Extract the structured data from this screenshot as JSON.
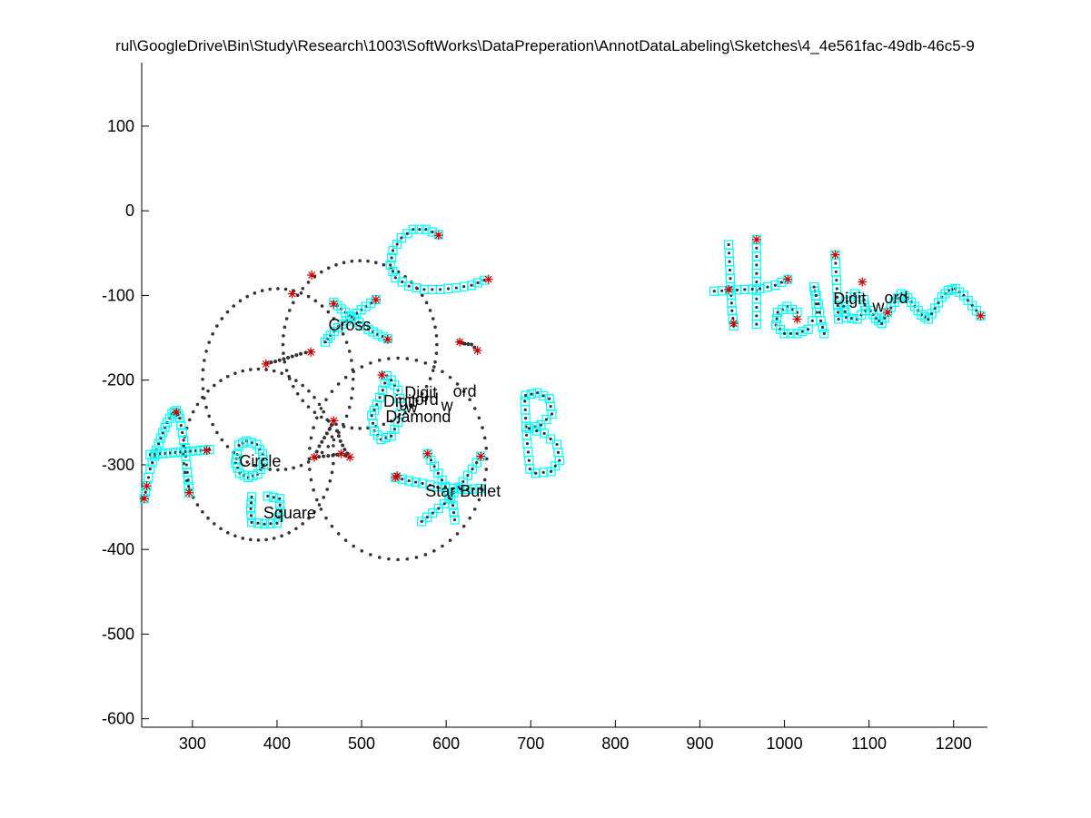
{
  "figure": {
    "title": "rul\\GoogleDrive\\Bin\\Study\\Research\\1003\\SoftWorks\\DataPreperation\\AnnotDataLabeling\\Sketches\\4_4e561fac-49db-46c5-9"
  },
  "chart_data": {
    "type": "scatter",
    "title": "rul\\GoogleDrive\\Bin\\Study\\Research\\1003\\SoftWorks\\DataPreperation\\AnnotDataLabeling\\Sketches\\4_4e561fac-49db-46c5-9",
    "xlabel": "",
    "ylabel": "",
    "xlim": [
      240,
      1240
    ],
    "ylim": [
      -610,
      175
    ],
    "xticks": [
      300,
      400,
      500,
      600,
      700,
      800,
      900,
      1000,
      1100,
      1200
    ],
    "yticks": [
      100,
      0,
      -100,
      -200,
      -300,
      -400,
      -500,
      -600
    ],
    "grid": false,
    "colors": {
      "stroke_marker": "#00ffff",
      "point": "#333333",
      "corner": "#cc0000",
      "axis": "#000000"
    },
    "annotations": [
      {
        "text": "Cross",
        "x": 486,
        "y": -135
      },
      {
        "text": "Digit",
        "x": 570,
        "y": -215
      },
      {
        "text": "ord",
        "x": 622,
        "y": -213
      },
      {
        "text": "Digit",
        "x": 545,
        "y": -225
      },
      {
        "text": "ord",
        "x": 577,
        "y": -223
      },
      {
        "text": "w",
        "x": 601,
        "y": -230
      },
      {
        "text": "w",
        "x": 559,
        "y": -232
      },
      {
        "text": "Diamond",
        "x": 567,
        "y": -243
      },
      {
        "text": "Circle",
        "x": 380,
        "y": -296
      },
      {
        "text": "Star Bullet",
        "x": 620,
        "y": -331
      },
      {
        "text": "Square",
        "x": 415,
        "y": -357
      },
      {
        "text": "Digit",
        "x": 1077,
        "y": -104
      },
      {
        "text": "ord",
        "x": 1132,
        "y": -103
      },
      {
        "text": "w",
        "x": 1111,
        "y": -113
      }
    ],
    "series": [
      {
        "name": "",
        "kind": "cyan",
        "points": [
          [
            243,
            -340
          ],
          [
            246,
            -325
          ],
          [
            250,
            -305
          ],
          [
            255,
            -290
          ],
          [
            260,
            -275
          ],
          [
            265,
            -262
          ],
          [
            270,
            -250
          ],
          [
            276,
            -240
          ],
          [
            281,
            -236
          ],
          [
            285,
            -245
          ],
          [
            288,
            -262
          ],
          [
            291,
            -280
          ],
          [
            293,
            -300
          ],
          [
            295,
            -318
          ],
          [
            296,
            -333
          ]
        ]
      },
      {
        "name": "",
        "kind": "cyan",
        "points": [
          [
            250,
            -288
          ],
          [
            262,
            -287
          ],
          [
            274,
            -286
          ],
          [
            286,
            -285
          ],
          [
            298,
            -284
          ],
          [
            310,
            -283
          ],
          [
            320,
            -282
          ]
        ]
      },
      {
        "name": "",
        "kind": "cyan",
        "points": [
          [
            353,
            -288
          ],
          [
            351,
            -298
          ],
          [
            356,
            -310
          ],
          [
            366,
            -315
          ],
          [
            377,
            -311
          ],
          [
            384,
            -300
          ],
          [
            383,
            -287
          ],
          [
            376,
            -276
          ],
          [
            364,
            -272
          ],
          [
            355,
            -277
          ]
        ]
      },
      {
        "name": "",
        "kind": "cyan",
        "points": [
          [
            370,
            -338
          ],
          [
            369,
            -352
          ],
          [
            370,
            -368
          ],
          [
            385,
            -370
          ],
          [
            400,
            -369
          ],
          [
            404,
            -355
          ],
          [
            403,
            -340
          ],
          [
            389,
            -337
          ]
        ]
      },
      {
        "name": "",
        "kind": "cyan",
        "points": [
          [
            467,
            -108
          ],
          [
            476,
            -116
          ],
          [
            486,
            -124
          ],
          [
            497,
            -132
          ],
          [
            508,
            -140
          ],
          [
            519,
            -146
          ],
          [
            531,
            -151
          ]
        ]
      },
      {
        "name": "",
        "kind": "cyan",
        "points": [
          [
            517,
            -105
          ],
          [
            505,
            -113
          ],
          [
            494,
            -121
          ],
          [
            482,
            -130
          ],
          [
            472,
            -138
          ],
          [
            463,
            -147
          ],
          [
            457,
            -155
          ]
        ]
      },
      {
        "name": "",
        "kind": "cyan",
        "points": [
          [
            591,
            -28
          ],
          [
            576,
            -22
          ],
          [
            561,
            -22
          ],
          [
            547,
            -32
          ],
          [
            537,
            -47
          ],
          [
            534,
            -64
          ],
          [
            540,
            -79
          ],
          [
            556,
            -89
          ],
          [
            574,
            -93
          ],
          [
            593,
            -93
          ],
          [
            612,
            -91
          ],
          [
            630,
            -88
          ],
          [
            645,
            -82
          ]
        ]
      },
      {
        "name": "",
        "kind": "cyan",
        "points": [
          [
            530,
            -195
          ],
          [
            525,
            -212
          ],
          [
            518,
            -229
          ],
          [
            512,
            -242
          ],
          [
            515,
            -260
          ],
          [
            523,
            -270
          ],
          [
            535,
            -266
          ],
          [
            543,
            -250
          ],
          [
            547,
            -231
          ],
          [
            543,
            -212
          ],
          [
            535,
            -200
          ]
        ]
      },
      {
        "name": "",
        "kind": "cyan",
        "points": [
          [
            578,
            -287
          ],
          [
            586,
            -302
          ],
          [
            595,
            -318
          ],
          [
            603,
            -333
          ],
          [
            608,
            -348
          ],
          [
            610,
            -365
          ]
        ]
      },
      {
        "name": "",
        "kind": "cyan",
        "points": [
          [
            641,
            -290
          ],
          [
            631,
            -305
          ],
          [
            620,
            -320
          ],
          [
            609,
            -333
          ],
          [
            598,
            -346
          ],
          [
            584,
            -357
          ],
          [
            571,
            -367
          ]
        ]
      },
      {
        "name": "",
        "kind": "cyan",
        "points": [
          [
            540,
            -315
          ],
          [
            556,
            -319
          ],
          [
            572,
            -322
          ],
          [
            590,
            -326
          ],
          [
            608,
            -328
          ],
          [
            625,
            -329
          ],
          [
            640,
            -328
          ]
        ]
      },
      {
        "name": "",
        "kind": "cyan",
        "points": [
          [
            693,
            -225
          ],
          [
            694,
            -245
          ],
          [
            695,
            -265
          ],
          [
            697,
            -285
          ],
          [
            699,
            -305
          ]
        ]
      },
      {
        "name": "",
        "kind": "cyan",
        "points": [
          [
            694,
            -218
          ],
          [
            708,
            -215
          ],
          [
            722,
            -222
          ],
          [
            725,
            -240
          ],
          [
            712,
            -253
          ],
          [
            698,
            -257
          ],
          [
            716,
            -263
          ],
          [
            731,
            -276
          ],
          [
            734,
            -295
          ],
          [
            724,
            -308
          ],
          [
            706,
            -310
          ]
        ]
      },
      {
        "name": "",
        "kind": "cyan",
        "points": [
          [
            934,
            -40
          ],
          [
            935,
            -60
          ],
          [
            936,
            -80
          ],
          [
            937,
            -100
          ],
          [
            938,
            -118
          ],
          [
            940,
            -136
          ]
        ]
      },
      {
        "name": "",
        "kind": "cyan",
        "points": [
          [
            967,
            -34
          ],
          [
            967,
            -54
          ],
          [
            967,
            -74
          ],
          [
            967,
            -94
          ],
          [
            967,
            -114
          ],
          [
            967,
            -134
          ]
        ]
      },
      {
        "name": "",
        "kind": "cyan",
        "points": [
          [
            917,
            -95
          ],
          [
            935,
            -94
          ],
          [
            953,
            -93
          ],
          [
            971,
            -92
          ],
          [
            989,
            -88
          ],
          [
            1004,
            -81
          ]
        ]
      },
      {
        "name": "",
        "kind": "cyan",
        "points": [
          [
            1015,
            -120
          ],
          [
            1003,
            -113
          ],
          [
            992,
            -120
          ],
          [
            990,
            -135
          ],
          [
            1000,
            -145
          ],
          [
            1015,
            -145
          ],
          [
            1028,
            -140
          ],
          [
            1038,
            -120
          ],
          [
            1037,
            -100
          ],
          [
            1035,
            -90
          ],
          [
            1040,
            -110
          ],
          [
            1043,
            -130
          ],
          [
            1047,
            -145
          ]
        ]
      },
      {
        "name": "",
        "kind": "cyan",
        "points": [
          [
            1060,
            -52
          ],
          [
            1061,
            -72
          ],
          [
            1062,
            -92
          ],
          [
            1063,
            -112
          ],
          [
            1064,
            -128
          ]
        ]
      },
      {
        "name": "",
        "kind": "cyan",
        "points": [
          [
            1078,
            -102
          ],
          [
            1070,
            -113
          ],
          [
            1073,
            -126
          ],
          [
            1086,
            -128
          ],
          [
            1096,
            -118
          ],
          [
            1094,
            -105
          ],
          [
            1083,
            -98
          ]
        ]
      },
      {
        "name": "",
        "kind": "cyan",
        "points": [
          [
            1102,
            -118
          ],
          [
            1108,
            -127
          ],
          [
            1115,
            -133
          ],
          [
            1122,
            -120
          ],
          [
            1130,
            -108
          ],
          [
            1138,
            -98
          ],
          [
            1146,
            -103
          ],
          [
            1154,
            -113
          ],
          [
            1162,
            -123
          ],
          [
            1170,
            -128
          ],
          [
            1178,
            -115
          ],
          [
            1186,
            -102
          ],
          [
            1194,
            -94
          ],
          [
            1202,
            -92
          ],
          [
            1212,
            -100
          ],
          [
            1222,
            -112
          ],
          [
            1232,
            -124
          ]
        ]
      },
      {
        "name": "",
        "kind": "dots",
        "points": [
          [
            388,
            -180
          ],
          [
            398,
            -178
          ],
          [
            408,
            -175
          ],
          [
            418,
            -172
          ],
          [
            428,
            -169
          ],
          [
            440,
            -166
          ]
        ]
      },
      {
        "name": "",
        "kind": "dots",
        "points": [
          [
            615,
            -155
          ],
          [
            622,
            -157
          ],
          [
            630,
            -158
          ],
          [
            637,
            -165
          ]
        ]
      },
      {
        "name": "",
        "kind": "dots",
        "points": [
          [
            467,
            -248
          ],
          [
            462,
            -258
          ],
          [
            456,
            -268
          ],
          [
            450,
            -278
          ],
          [
            444,
            -291
          ],
          [
            455,
            -290
          ],
          [
            466,
            -289
          ],
          [
            476,
            -287
          ],
          [
            486,
            -291
          ],
          [
            480,
            -282
          ],
          [
            475,
            -272
          ],
          [
            471,
            -260
          ]
        ]
      }
    ],
    "circles": [
      {
        "cx": 401,
        "cy": -199,
        "rx": 89,
        "ry": 107,
        "spec": "C1"
      },
      {
        "cx": 378,
        "cy": -288,
        "rx": 89,
        "ry": 101,
        "spec": "C2"
      },
      {
        "cx": 498,
        "cy": -158,
        "rx": 91,
        "ry": 99,
        "spec": "C3"
      },
      {
        "cx": 543,
        "cy": -293,
        "rx": 105,
        "ry": 119,
        "spec": "C4"
      }
    ],
    "corners": [
      [
        243,
        -340
      ],
      [
        281,
        -238
      ],
      [
        296,
        -333
      ],
      [
        246,
        -325
      ],
      [
        317,
        -283
      ],
      [
        418,
        -98
      ],
      [
        441,
        -76
      ],
      [
        387,
        -181
      ],
      [
        440,
        -167
      ],
      [
        467,
        -110
      ],
      [
        517,
        -105
      ],
      [
        531,
        -152
      ],
      [
        591,
        -29
      ],
      [
        650,
        -81
      ],
      [
        616,
        -155
      ],
      [
        637,
        -165
      ],
      [
        467,
        -248
      ],
      [
        444,
        -291
      ],
      [
        476,
        -287
      ],
      [
        486,
        -291
      ],
      [
        524,
        -194
      ],
      [
        542,
        -313
      ],
      [
        578,
        -287
      ],
      [
        641,
        -290
      ],
      [
        540,
        -315
      ],
      [
        934,
        -93
      ],
      [
        940,
        -133
      ],
      [
        967,
        -34
      ],
      [
        1004,
        -81
      ],
      [
        1015,
        -128
      ],
      [
        1060,
        -52
      ],
      [
        1092,
        -84
      ],
      [
        1122,
        -120
      ],
      [
        1232,
        -124
      ]
    ]
  }
}
